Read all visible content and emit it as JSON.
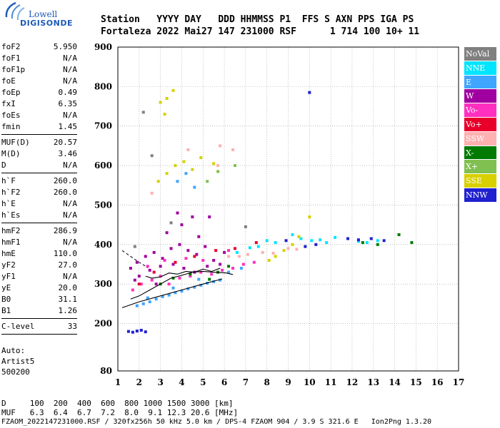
{
  "logo": {
    "line1": "Lowell",
    "line2": "DIGISONDE"
  },
  "header": {
    "row1": "Station   YYYY DAY   DDD HHMMSS P1  FFS S AXN PPS IGA PS",
    "row2": "Fortaleza 2022 Mai27 147 231000 RSF      1 714 100 10+ 11"
  },
  "params": [
    [
      {
        "label": "foF2",
        "value": "5.950"
      },
      {
        "label": "foF1",
        "value": "N/A"
      },
      {
        "label": "foF1p",
        "value": "N/A"
      },
      {
        "label": "foE",
        "value": "N/A"
      },
      {
        "label": "foEp",
        "value": "0.49"
      },
      {
        "label": "fxI",
        "value": "6.35"
      },
      {
        "label": "foEs",
        "value": "N/A"
      },
      {
        "label": "fmin",
        "value": "1.45"
      }
    ],
    [
      {
        "label": "MUF(D)",
        "value": "20.57"
      },
      {
        "label": "M(D)",
        "value": "3.46"
      },
      {
        "label": "D",
        "value": "N/A"
      }
    ],
    [
      {
        "label": "h`F",
        "value": "260.0"
      },
      {
        "label": "h`F2",
        "value": "260.0"
      },
      {
        "label": "h`E",
        "value": "N/A"
      },
      {
        "label": "h`Es",
        "value": "N/A"
      }
    ],
    [
      {
        "label": "hmF2",
        "value": "286.9"
      },
      {
        "label": "hmF1",
        "value": "N/A"
      },
      {
        "label": "hmE",
        "value": "110.0"
      },
      {
        "label": "yF2",
        "value": "27.0"
      },
      {
        "label": "yF1",
        "value": "N/A"
      },
      {
        "label": "yE",
        "value": "20.0"
      },
      {
        "label": "B0",
        "value": "31.1"
      },
      {
        "label": "B1",
        "value": "1.26"
      }
    ],
    [
      {
        "label": "C-level",
        "value": "33"
      }
    ]
  ],
  "auto": [
    "Auto:",
    "Artist5",
    "500200"
  ],
  "legend": [
    {
      "label": "NoVal",
      "color": "#808080"
    },
    {
      "label": "NNE",
      "color": "#00e5ff"
    },
    {
      "label": "E",
      "color": "#3fa5ff"
    },
    {
      "label": "W",
      "color": "#a000a0"
    },
    {
      "label": "Vo-",
      "color": "#ff30c0"
    },
    {
      "label": "Vo+",
      "color": "#e8002a"
    },
    {
      "label": "SSW",
      "color": "#ffb0b0"
    },
    {
      "label": "X-",
      "color": "#007a00"
    },
    {
      "label": "X+",
      "color": "#80c050"
    },
    {
      "label": "SSE",
      "color": "#d8d000"
    },
    {
      "label": "NNW",
      "color": "#2020d0"
    }
  ],
  "bottom": {
    "d_row": "D     100  200  400  600  800 1000 1500 3000 [km]",
    "muf_row": "MUF   6.3  6.4  6.7  7.2  8.0  9.1 12.3 20.6 [MHz]",
    "footer": "FZAOM_2022147231000.RSF / 320fx256h 50 kHz 5.0 km / DPS-4 FZAOM 904 / 3.9 S 321.6 E   Ion2Png 1.3.20"
  },
  "chart_data": {
    "type": "scatter",
    "title": "",
    "xlabel": "",
    "ylabel": "",
    "xlim": [
      1,
      17
    ],
    "ylim": [
      80,
      900
    ],
    "x_ticks": [
      1,
      2,
      3,
      4,
      5,
      6,
      7,
      8,
      9,
      10,
      11,
      12,
      13,
      14,
      15,
      16,
      17
    ],
    "y_ticks": [
      80,
      200,
      300,
      400,
      500,
      600,
      700,
      800,
      900
    ],
    "grid": true,
    "legend_position": "right",
    "clusters": [
      {
        "color": "#a000a0",
        "points": [
          [
            1.6,
            340
          ],
          [
            1.9,
            355
          ],
          [
            2.3,
            370
          ],
          [
            2.7,
            380
          ],
          [
            3.1,
            365
          ],
          [
            3.5,
            390
          ],
          [
            3.9,
            400
          ],
          [
            4.3,
            385
          ],
          [
            4.7,
            375
          ],
          [
            5.1,
            395
          ],
          [
            5.5,
            360
          ],
          [
            6.0,
            380
          ],
          [
            2.0,
            320
          ],
          [
            2.5,
            335
          ],
          [
            3.0,
            345
          ],
          [
            3.6,
            350
          ],
          [
            4.1,
            340
          ],
          [
            4.6,
            330
          ],
          [
            5.2,
            345
          ],
          [
            5.8,
            350
          ],
          [
            3.3,
            430
          ],
          [
            4.0,
            450
          ],
          [
            4.8,
            420
          ],
          [
            2.8,
            300
          ],
          [
            1.8,
            310
          ],
          [
            4.5,
            470
          ],
          [
            5.3,
            470
          ],
          [
            3.8,
            480
          ]
        ]
      },
      {
        "color": "#ff30c0",
        "points": [
          [
            1.7,
            285
          ],
          [
            2.1,
            300
          ],
          [
            2.6,
            310
          ],
          [
            3.0,
            320
          ],
          [
            3.4,
            300
          ],
          [
            3.9,
            315
          ],
          [
            4.4,
            320
          ],
          [
            4.9,
            330
          ],
          [
            5.4,
            325
          ],
          [
            5.9,
            335
          ],
          [
            6.4,
            340
          ],
          [
            6.9,
            350
          ],
          [
            7.4,
            355
          ],
          [
            2.4,
            345
          ],
          [
            3.2,
            360
          ],
          [
            4.2,
            365
          ],
          [
            5.0,
            360
          ],
          [
            6.2,
            385
          ]
        ]
      },
      {
        "color": "#3fa5ff",
        "points": [
          [
            1.9,
            245
          ],
          [
            2.2,
            250
          ],
          [
            2.5,
            255
          ],
          [
            2.8,
            262
          ],
          [
            3.1,
            268
          ],
          [
            3.4,
            272
          ],
          [
            3.7,
            278
          ],
          [
            4.0,
            282
          ],
          [
            4.3,
            288
          ],
          [
            4.6,
            292
          ],
          [
            4.9,
            297
          ],
          [
            5.2,
            302
          ],
          [
            5.5,
            306
          ],
          [
            5.8,
            310
          ],
          [
            2.4,
            265
          ],
          [
            3.6,
            290
          ],
          [
            4.8,
            312
          ],
          [
            6.2,
            330
          ],
          [
            6.8,
            340
          ],
          [
            3.8,
            560
          ],
          [
            4.2,
            580
          ],
          [
            4.6,
            545
          ]
        ]
      },
      {
        "color": "#00e5ff",
        "points": [
          [
            7.6,
            395
          ],
          [
            8.0,
            410
          ],
          [
            8.4,
            405
          ],
          [
            9.2,
            425
          ],
          [
            9.6,
            415
          ],
          [
            10.1,
            410
          ],
          [
            10.5,
            412
          ],
          [
            10.8,
            405
          ],
          [
            11.2,
            418
          ],
          [
            12.3,
            408
          ],
          [
            12.7,
            405
          ],
          [
            13.2,
            410
          ],
          [
            6.6,
            380
          ],
          [
            7.2,
            392
          ]
        ]
      },
      {
        "color": "#d8d000",
        "points": [
          [
            3.0,
            760
          ],
          [
            3.3,
            770
          ],
          [
            3.6,
            790
          ],
          [
            2.9,
            560
          ],
          [
            3.3,
            580
          ],
          [
            3.7,
            600
          ],
          [
            4.1,
            610
          ],
          [
            4.5,
            590
          ],
          [
            4.9,
            620
          ],
          [
            5.5,
            605
          ],
          [
            8.1,
            360
          ],
          [
            8.4,
            370
          ],
          [
            8.8,
            385
          ],
          [
            9.2,
            400
          ],
          [
            9.5,
            420
          ],
          [
            10.0,
            470
          ],
          [
            3.2,
            730
          ]
        ]
      },
      {
        "color": "#ffb0b0",
        "points": [
          [
            6.2,
            370
          ],
          [
            6.7,
            370
          ],
          [
            7.1,
            375
          ],
          [
            7.8,
            380
          ],
          [
            8.3,
            378
          ],
          [
            9.0,
            390
          ],
          [
            9.4,
            388
          ],
          [
            2.6,
            530
          ],
          [
            5.7,
            600
          ],
          [
            6.4,
            640
          ],
          [
            5.8,
            650
          ],
          [
            4.3,
            640
          ]
        ]
      },
      {
        "color": "#007a00",
        "points": [
          [
            3.0,
            300
          ],
          [
            3.6,
            315
          ],
          [
            4.4,
            325
          ],
          [
            5.3,
            312
          ],
          [
            5.7,
            330
          ],
          [
            6.2,
            345
          ],
          [
            13.2,
            400
          ],
          [
            14.2,
            425
          ],
          [
            12.5,
            405
          ],
          [
            14.8,
            405
          ]
        ]
      },
      {
        "color": "#80c050",
        "points": [
          [
            5.7,
            585
          ],
          [
            6.5,
            600
          ],
          [
            5.2,
            560
          ]
        ]
      },
      {
        "color": "#e8002a",
        "points": [
          [
            2.0,
            300
          ],
          [
            2.7,
            330
          ],
          [
            3.7,
            355
          ],
          [
            4.6,
            370
          ],
          [
            5.6,
            385
          ],
          [
            6.5,
            390
          ],
          [
            7.5,
            405
          ]
        ]
      },
      {
        "color": "#2020d0",
        "points": [
          [
            1.5,
            180
          ],
          [
            1.7,
            178
          ],
          [
            1.9,
            181
          ],
          [
            2.1,
            183
          ],
          [
            2.3,
            179
          ],
          [
            8.9,
            410
          ],
          [
            9.8,
            395
          ],
          [
            10.3,
            400
          ],
          [
            11.8,
            415
          ],
          [
            12.3,
            412
          ],
          [
            12.9,
            415
          ],
          [
            13.5,
            410
          ],
          [
            10.0,
            785
          ]
        ]
      },
      {
        "color": "#808080",
        "points": [
          [
            2.2,
            735
          ],
          [
            2.6,
            625
          ],
          [
            1.8,
            395
          ],
          [
            3.5,
            455
          ],
          [
            7.0,
            445
          ]
        ]
      }
    ],
    "curves": [
      {
        "color": "#000000",
        "points": [
          [
            1.2,
            240
          ],
          [
            2.0,
            255
          ],
          [
            3.0,
            270
          ],
          [
            4.0,
            285
          ],
          [
            5.0,
            300
          ],
          [
            5.9,
            313
          ]
        ]
      },
      {
        "color": "#000000",
        "points": [
          [
            1.6,
            262
          ],
          [
            2.0,
            270
          ],
          [
            2.5,
            285
          ],
          [
            3.0,
            300
          ],
          [
            3.5,
            315
          ],
          [
            4.0,
            322
          ],
          [
            4.5,
            330
          ],
          [
            5.0,
            332
          ],
          [
            5.5,
            330
          ],
          [
            6.1,
            328
          ],
          [
            6.4,
            324
          ]
        ]
      },
      {
        "color": "#000000",
        "points": [
          [
            2.3,
            320
          ],
          [
            2.6,
            315
          ],
          [
            3.0,
            318
          ],
          [
            3.4,
            328
          ],
          [
            3.8,
            325
          ],
          [
            4.2,
            332
          ],
          [
            4.6,
            330
          ],
          [
            5.0,
            338
          ],
          [
            5.4,
            332
          ],
          [
            5.8,
            340
          ]
        ]
      }
    ],
    "dashed_curve": {
      "color": "#000000",
      "points": [
        [
          1.2,
          385
        ],
        [
          1.6,
          370
        ],
        [
          2.0,
          355
        ],
        [
          2.4,
          342
        ]
      ]
    }
  }
}
